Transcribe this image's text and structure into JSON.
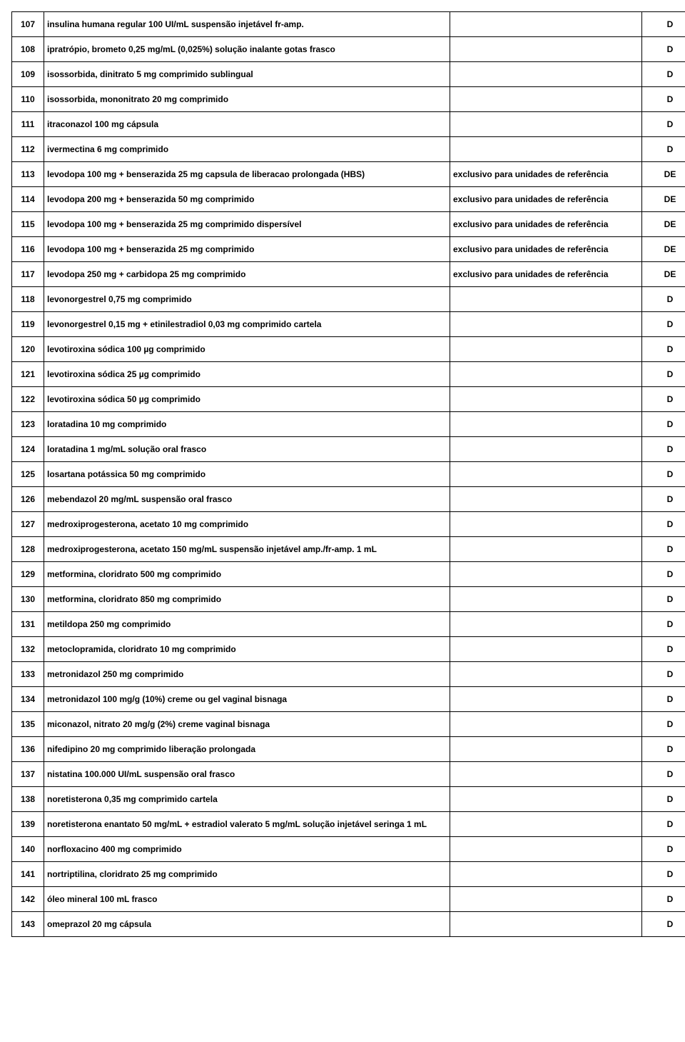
{
  "table": {
    "rows": [
      {
        "num": "107",
        "desc": "insulina humana regular 100 UI/mL suspensão injetável fr-amp.",
        "note": "",
        "code": "D"
      },
      {
        "num": "108",
        "desc": "ipratrópio, brometo 0,25 mg/mL (0,025%) solução inalante gotas frasco",
        "note": "",
        "code": "D"
      },
      {
        "num": "109",
        "desc": "isossorbida, dinitrato 5 mg comprimido sublingual",
        "note": "",
        "code": "D"
      },
      {
        "num": "110",
        "desc": "isossorbida, mononitrato 20 mg comprimido",
        "note": "",
        "code": "D"
      },
      {
        "num": "111",
        "desc": "itraconazol 100 mg cápsula",
        "note": "",
        "code": "D"
      },
      {
        "num": "112",
        "desc": "ivermectina 6 mg comprimido",
        "note": "",
        "code": "D"
      },
      {
        "num": "113",
        "desc": "levodopa 100 mg + benserazida 25 mg capsula de liberacao prolongada (HBS)",
        "note": "exclusivo para unidades de referência",
        "code": "DE"
      },
      {
        "num": "114",
        "desc": "levodopa 200 mg + benserazida 50 mg comprimido",
        "note": "exclusivo para unidades de referência",
        "code": "DE"
      },
      {
        "num": "115",
        "desc": "levodopa 100 mg + benserazida 25 mg comprimido dispersível",
        "note": "exclusivo para unidades de referência",
        "code": "DE"
      },
      {
        "num": "116",
        "desc": "levodopa 100 mg + benserazida 25 mg comprimido",
        "note": "exclusivo para unidades de referência",
        "code": "DE"
      },
      {
        "num": "117",
        "desc": "levodopa 250 mg + carbidopa 25 mg comprimido",
        "note": "exclusivo para unidades de referência",
        "code": "DE"
      },
      {
        "num": "118",
        "desc": "levonorgestrel 0,75 mg comprimido",
        "note": "",
        "code": "D"
      },
      {
        "num": "119",
        "desc": "levonorgestrel 0,15 mg + etinilestradiol 0,03 mg comprimido cartela",
        "note": "",
        "code": "D"
      },
      {
        "num": "120",
        "desc": "levotiroxina sódica 100 µg comprimido",
        "note": "",
        "code": "D"
      },
      {
        "num": "121",
        "desc": "levotiroxina sódica 25 µg comprimido",
        "note": "",
        "code": "D"
      },
      {
        "num": "122",
        "desc": "levotiroxina sódica 50 µg comprimido",
        "note": "",
        "code": "D"
      },
      {
        "num": "123",
        "desc": "loratadina 10 mg comprimido",
        "note": "",
        "code": "D"
      },
      {
        "num": "124",
        "desc": "loratadina 1 mg/mL solução oral frasco",
        "note": "",
        "code": "D"
      },
      {
        "num": "125",
        "desc": "losartana potássica 50 mg comprimido",
        "note": "",
        "code": "D"
      },
      {
        "num": "126",
        "desc": "mebendazol 20 mg/mL suspensão oral frasco",
        "note": "",
        "code": "D"
      },
      {
        "num": "127",
        "desc": "medroxiprogesterona, acetato 10 mg comprimido",
        "note": "",
        "code": "D"
      },
      {
        "num": "128",
        "desc": "medroxiprogesterona, acetato 150 mg/mL suspensão injetável amp./fr-amp. 1 mL",
        "note": "",
        "code": "D"
      },
      {
        "num": "129",
        "desc": "metformina, cloridrato 500 mg comprimido",
        "note": "",
        "code": "D"
      },
      {
        "num": "130",
        "desc": "metformina, cloridrato 850 mg comprimido",
        "note": "",
        "code": "D"
      },
      {
        "num": "131",
        "desc": "metildopa 250 mg comprimido",
        "note": "",
        "code": "D"
      },
      {
        "num": "132",
        "desc": "metoclopramida, cloridrato 10 mg comprimido",
        "note": "",
        "code": "D"
      },
      {
        "num": "133",
        "desc": "metronidazol 250 mg comprimido",
        "note": "",
        "code": "D"
      },
      {
        "num": "134",
        "desc": "metronidazol 100 mg/g (10%) creme ou gel vaginal bisnaga",
        "note": "",
        "code": "D"
      },
      {
        "num": "135",
        "desc": "miconazol, nitrato 20 mg/g (2%) creme vaginal bisnaga",
        "note": "",
        "code": "D"
      },
      {
        "num": "136",
        "desc": "nifedipino 20 mg comprimido liberação prolongada",
        "note": "",
        "code": "D"
      },
      {
        "num": "137",
        "desc": "nistatina 100.000 UI/mL suspensão oral frasco",
        "note": "",
        "code": "D"
      },
      {
        "num": "138",
        "desc": "noretisterona 0,35 mg comprimido cartela",
        "note": "",
        "code": "D"
      },
      {
        "num": "139",
        "desc": "noretisterona enantato 50 mg/mL + estradiol valerato 5 mg/mL solução injetável seringa 1 mL",
        "note": "",
        "code": "D"
      },
      {
        "num": "140",
        "desc": "norfloxacino 400 mg comprimido",
        "note": "",
        "code": "D"
      },
      {
        "num": "141",
        "desc": "nortriptilina, cloridrato 25 mg comprimido",
        "note": "",
        "code": "D"
      },
      {
        "num": "142",
        "desc": "óleo mineral 100 mL frasco",
        "note": "",
        "code": "D"
      },
      {
        "num": "143",
        "desc": "omeprazol 20 mg cápsula",
        "note": "",
        "code": "D"
      }
    ]
  }
}
